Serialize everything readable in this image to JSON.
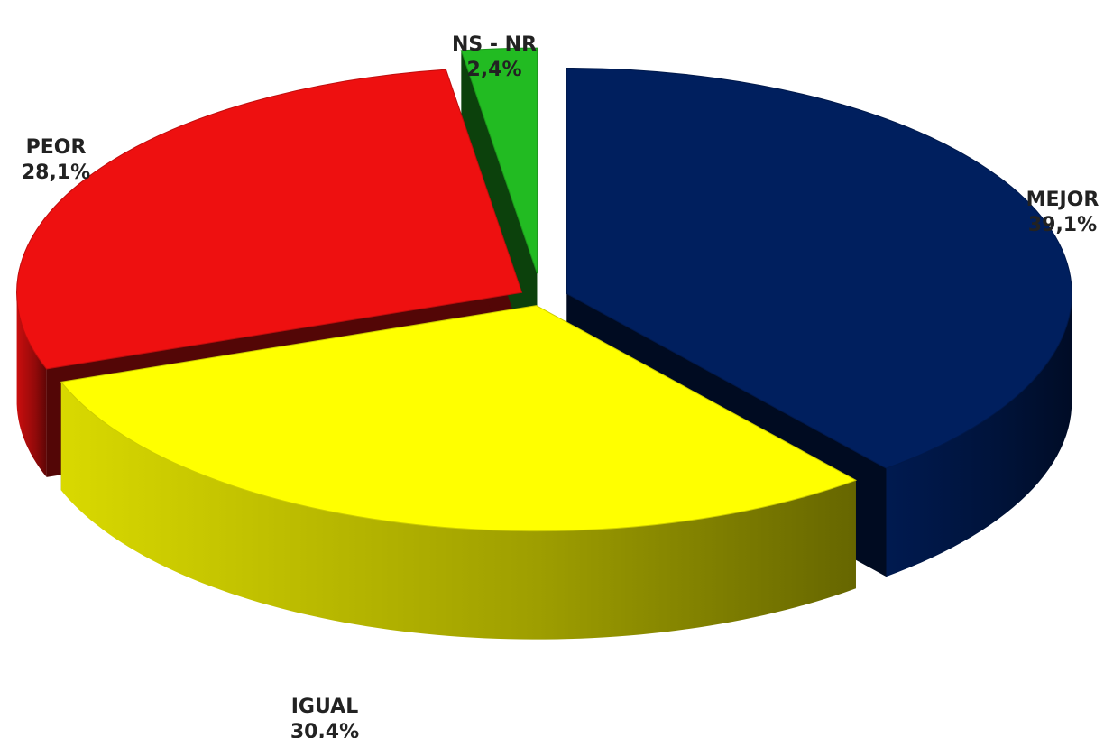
{
  "chart_data": {
    "type": "pie",
    "style": "3d-exploded",
    "slices": [
      {
        "label": "MEJOR",
        "value": 39.1,
        "value_text": "39,1%",
        "color": "#001F5E"
      },
      {
        "label": "IGUAL",
        "value": 30.4,
        "value_text": "30,4%",
        "color": "#FFFF00"
      },
      {
        "label": "PEOR",
        "value": 28.1,
        "value_text": "28,1%",
        "color": "#EE1010"
      },
      {
        "label": "NS - NR",
        "value": 2.4,
        "value_text": "2,4%",
        "color": "#22BB22"
      }
    ]
  }
}
